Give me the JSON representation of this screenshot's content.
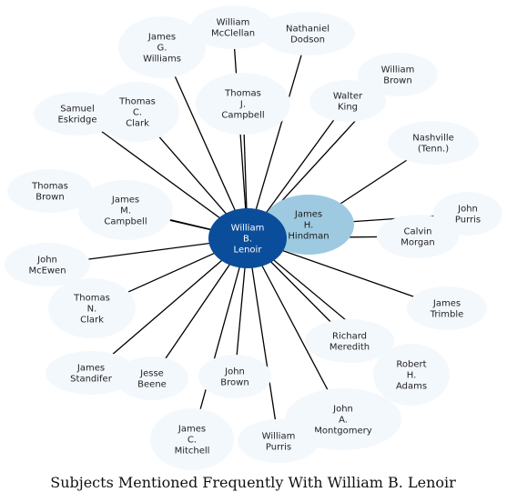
{
  "title": "Subjects Mentioned Frequently With William B. Lenoir",
  "colors": {
    "center": "#0a4d9a",
    "secondary": "#9dcae1",
    "leaf": "#f3f8fd",
    "edge": "#000000"
  },
  "center": {
    "id": "lenoir",
    "lines": [
      "William",
      "B.",
      "Lenoir"
    ]
  },
  "secondary": {
    "id": "hindman",
    "lines": [
      "James",
      "H.",
      "Hindman"
    ]
  },
  "nodes": [
    {
      "id": "mcclellan",
      "lines": [
        "William",
        "McClellan"
      ]
    },
    {
      "id": "dodson",
      "lines": [
        "Nathaniel",
        "Dodson"
      ]
    },
    {
      "id": "g-williams",
      "lines": [
        "James",
        "G.",
        "Williams"
      ]
    },
    {
      "id": "w-brown",
      "lines": [
        "William",
        "Brown"
      ]
    },
    {
      "id": "t-campbell",
      "lines": [
        "Thomas",
        "J.",
        "Campbell"
      ]
    },
    {
      "id": "king",
      "lines": [
        "Walter",
        "King"
      ]
    },
    {
      "id": "eskridge",
      "lines": [
        "Samuel",
        "Eskridge"
      ]
    },
    {
      "id": "t-clark-c",
      "lines": [
        "Thomas",
        "C.",
        "Clark"
      ]
    },
    {
      "id": "nashville",
      "lines": [
        "Nashville",
        "(Tenn.)"
      ]
    },
    {
      "id": "t-brown",
      "lines": [
        "Thomas",
        "Brown"
      ]
    },
    {
      "id": "j-campbell",
      "lines": [
        "James",
        "M.",
        "Campbell"
      ]
    },
    {
      "id": "j-purris",
      "lines": [
        "John",
        "Purris"
      ]
    },
    {
      "id": "morgan",
      "lines": [
        "Calvin",
        "Morgan"
      ]
    },
    {
      "id": "mcewen",
      "lines": [
        "John",
        "McEwen"
      ]
    },
    {
      "id": "t-clark-n",
      "lines": [
        "Thomas",
        "N.",
        "Clark"
      ]
    },
    {
      "id": "trimble",
      "lines": [
        "James",
        "Trimble"
      ]
    },
    {
      "id": "meredith",
      "lines": [
        "Richard",
        "Meredith"
      ]
    },
    {
      "id": "standifer",
      "lines": [
        "James",
        "Standifer"
      ]
    },
    {
      "id": "adams",
      "lines": [
        "Robert",
        "H.",
        "Adams"
      ]
    },
    {
      "id": "beene",
      "lines": [
        "Jesse",
        "Beene"
      ]
    },
    {
      "id": "j-brown",
      "lines": [
        "John",
        "Brown"
      ]
    },
    {
      "id": "montgomery",
      "lines": [
        "John",
        "A.",
        "Montgomery"
      ]
    },
    {
      "id": "mitchell",
      "lines": [
        "James",
        "C.",
        "Mitchell"
      ]
    },
    {
      "id": "w-purris",
      "lines": [
        "William",
        "Purris"
      ]
    }
  ],
  "edges": [
    [
      "lenoir",
      "hindman"
    ],
    [
      "lenoir",
      "mcclellan"
    ],
    [
      "lenoir",
      "dodson"
    ],
    [
      "lenoir",
      "g-williams"
    ],
    [
      "lenoir",
      "w-brown"
    ],
    [
      "lenoir",
      "t-campbell"
    ],
    [
      "lenoir",
      "king"
    ],
    [
      "lenoir",
      "eskridge"
    ],
    [
      "lenoir",
      "t-clark-c"
    ],
    [
      "lenoir",
      "t-brown"
    ],
    [
      "lenoir",
      "j-campbell"
    ],
    [
      "lenoir",
      "morgan"
    ],
    [
      "lenoir",
      "mcewen"
    ],
    [
      "lenoir",
      "t-clark-n"
    ],
    [
      "lenoir",
      "trimble"
    ],
    [
      "lenoir",
      "meredith"
    ],
    [
      "lenoir",
      "standifer"
    ],
    [
      "lenoir",
      "adams"
    ],
    [
      "lenoir",
      "beene"
    ],
    [
      "lenoir",
      "j-brown"
    ],
    [
      "lenoir",
      "montgomery"
    ],
    [
      "lenoir",
      "mitchell"
    ],
    [
      "lenoir",
      "w-purris"
    ],
    [
      "hindman",
      "nashville"
    ],
    [
      "hindman",
      "j-purris"
    ]
  ]
}
